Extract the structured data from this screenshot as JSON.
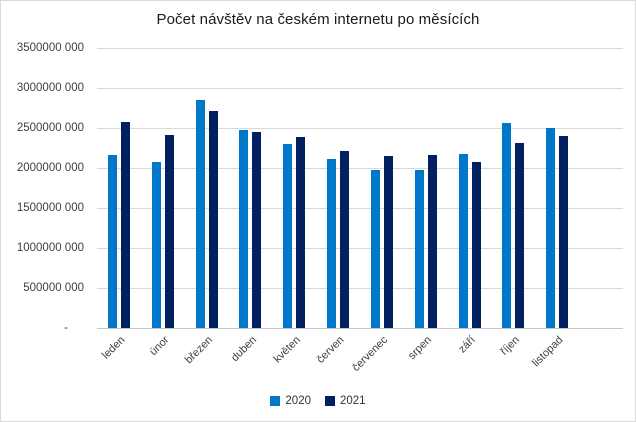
{
  "chart_data": {
    "type": "bar",
    "title": "Počet návštěv na českém internetu po měsících",
    "categories": [
      "leden",
      "únor",
      "březen",
      "duben",
      "květen",
      "červen",
      "červenec",
      "srpen",
      "září",
      "říjen",
      "listopad"
    ],
    "series": [
      {
        "name": "2020",
        "color": "#0077c8",
        "values": [
          2160000000,
          2070000000,
          2850000000,
          2470000000,
          2300000000,
          2110000000,
          1970000000,
          1980000000,
          2180000000,
          2560000000,
          2500000000
        ]
      },
      {
        "name": "2021",
        "color": "#002060",
        "values": [
          2570000000,
          2410000000,
          2710000000,
          2450000000,
          2390000000,
          2210000000,
          2150000000,
          2160000000,
          2070000000,
          2310000000,
          2400000000
        ]
      }
    ],
    "xlabel": "",
    "ylabel": "",
    "ylim": [
      0,
      3500000000
    ],
    "ytick_step": 500000000,
    "ytick_labels_top_to_bottom": [
      "3500000 000",
      "3000000 000",
      "2500000 000",
      "2000000 000",
      "1500000 000",
      "1000000 000",
      "500000 000",
      "-"
    ],
    "grid": true,
    "legend_position": "bottom",
    "trailing_empty_categories": 1
  },
  "colors": {
    "background": "#ffffff",
    "border": "#d9d9d9",
    "gridline": "#d9d9d9",
    "axis_line": "#c6c6c6",
    "title_text": "#1a1a1a",
    "axis_text": "#404040",
    "series_2020": "#0077c8",
    "series_2021": "#002060"
  }
}
